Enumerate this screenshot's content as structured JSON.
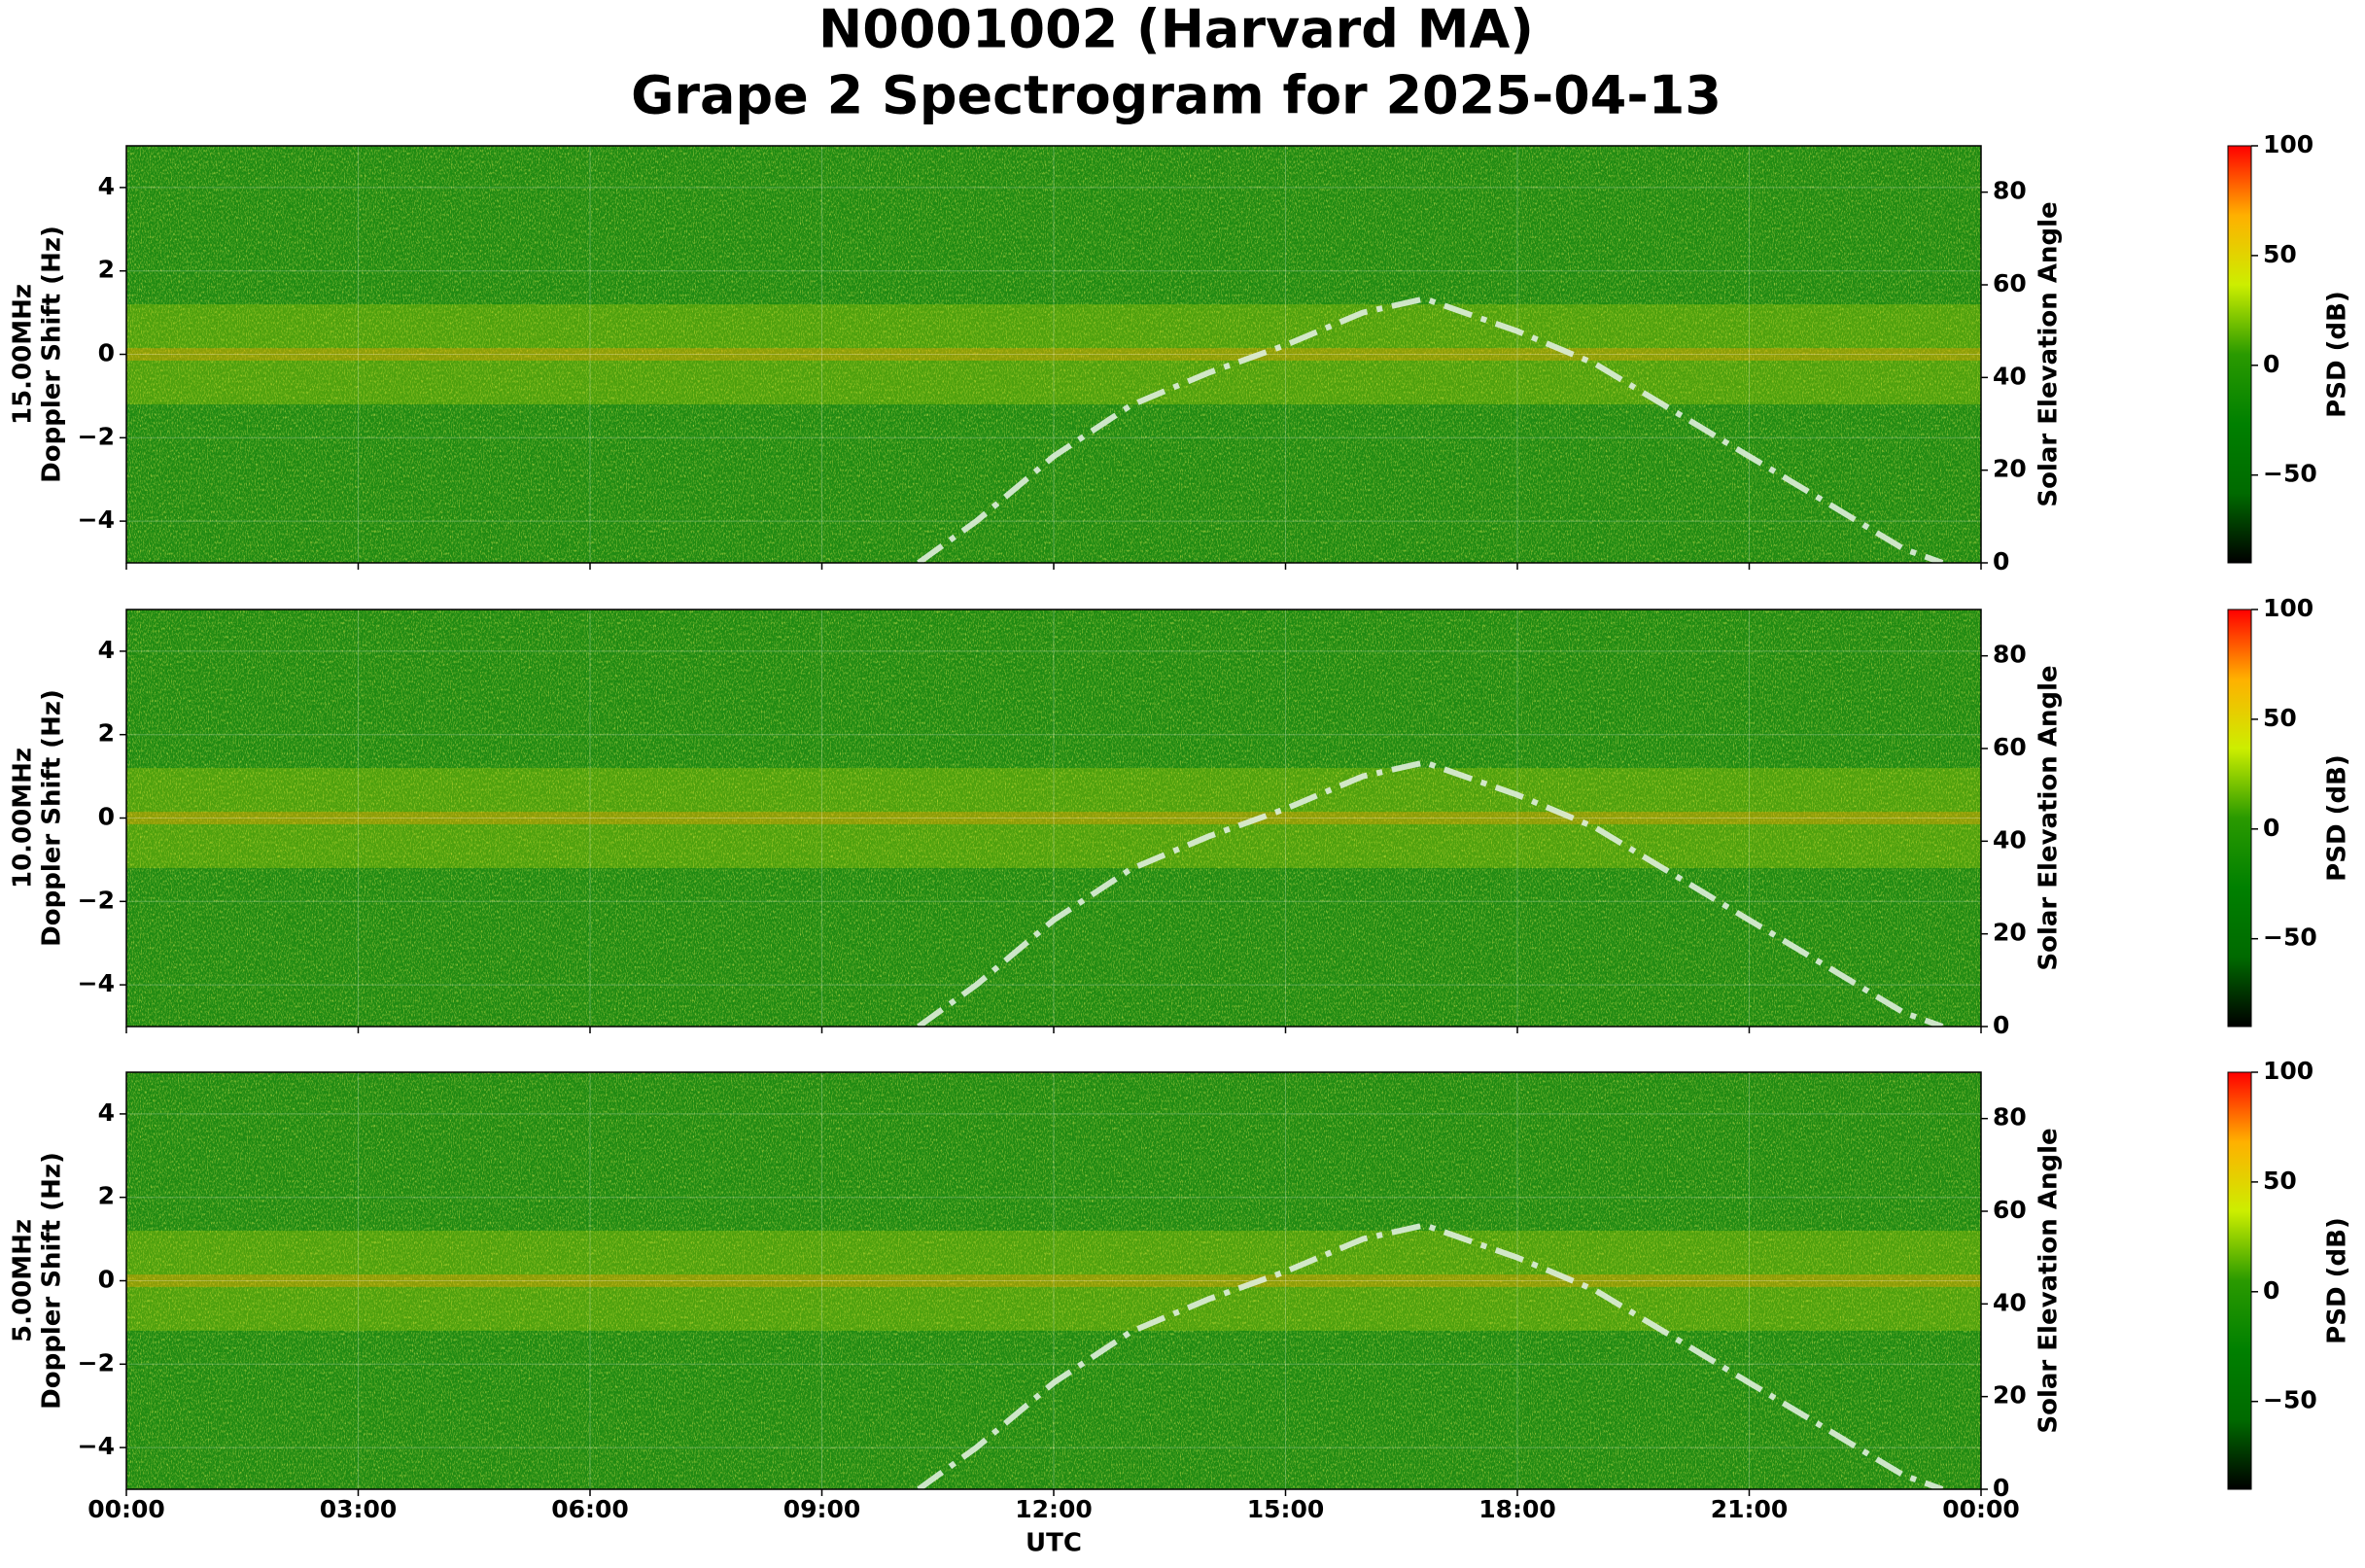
{
  "suptitle": [
    "N0001002 (Harvard MA)",
    "Grape 2 Spectrogram for 2025-04-13"
  ],
  "chart_data": [
    {
      "type": "spectrogram",
      "ylabel": [
        "15.00MHz",
        "Doppler Shift (Hz)"
      ],
      "y2label": "Solar Elevation Angle",
      "xlim": [
        0,
        24
      ],
      "ylim": [
        -5,
        5
      ],
      "yticks": [
        {
          "value": -4,
          "label": "−4"
        },
        {
          "value": -2,
          "label": "−2"
        },
        0,
        2,
        4
      ],
      "y2lim": [
        0,
        90
      ],
      "y2ticks": [
        0,
        20,
        40,
        60,
        80
      ],
      "grid": true,
      "x": [
        10.25,
        11,
        12,
        13,
        14,
        15,
        16,
        16.8,
        18,
        19,
        20,
        21,
        22,
        23,
        23.5
      ],
      "series": [
        {
          "color": "#dfeedd",
          "axis": "y2",
          "linestyle": "dashdot",
          "values": [
            0,
            9,
            23,
            34,
            41,
            47,
            54,
            57,
            50,
            43,
            33,
            23,
            13,
            3,
            0
          ]
        }
      ],
      "colorbar": {
        "label": "PSD (dB)",
        "lim": [
          -90,
          100
        ],
        "ticks": [
          {
            "value": -50,
            "label": "−50"
          },
          0,
          50,
          100
        ],
        "colors": [
          "#000000",
          "#006a00",
          "#008000",
          "#2a9a00",
          "#ccee00",
          "#ffb000",
          "#ff0000"
        ]
      }
    },
    {
      "type": "spectrogram",
      "ylabel": [
        "10.00MHz",
        "Doppler Shift (Hz)"
      ],
      "y2label": "Solar Elevation Angle",
      "xlim": [
        0,
        24
      ],
      "ylim": [
        -5,
        5
      ],
      "yticks": [
        {
          "value": -4,
          "label": "−4"
        },
        {
          "value": -2,
          "label": "−2"
        },
        0,
        2,
        4
      ],
      "y2lim": [
        0,
        90
      ],
      "y2ticks": [
        0,
        20,
        40,
        60,
        80
      ],
      "grid": true,
      "x": [
        10.25,
        11,
        12,
        13,
        14,
        15,
        16,
        16.8,
        18,
        19,
        20,
        21,
        22,
        23,
        23.5
      ],
      "series": [
        {
          "color": "#dfeedd",
          "axis": "y2",
          "linestyle": "dashdot",
          "values": [
            0,
            9,
            23,
            34,
            41,
            47,
            54,
            57,
            50,
            43,
            33,
            23,
            13,
            3,
            0
          ]
        }
      ],
      "colorbar": {
        "label": "PSD (dB)",
        "lim": [
          -90,
          100
        ],
        "ticks": [
          {
            "value": -50,
            "label": "−50"
          },
          0,
          50,
          100
        ],
        "colors": [
          "#000000",
          "#006a00",
          "#008000",
          "#2a9a00",
          "#ccee00",
          "#ffb000",
          "#ff0000"
        ]
      }
    },
    {
      "type": "spectrogram",
      "ylabel": [
        "5.00MHz",
        "Doppler Shift (Hz)"
      ],
      "y2label": "Solar Elevation Angle",
      "xlabel": "UTC",
      "xlim": [
        0,
        24
      ],
      "xticks": [
        {
          "value": 0,
          "label": "00:00"
        },
        {
          "value": 3,
          "label": "03:00"
        },
        {
          "value": 6,
          "label": "06:00"
        },
        {
          "value": 9,
          "label": "09:00"
        },
        {
          "value": 12,
          "label": "12:00"
        },
        {
          "value": 15,
          "label": "15:00"
        },
        {
          "value": 18,
          "label": "18:00"
        },
        {
          "value": 21,
          "label": "21:00"
        },
        {
          "value": 24,
          "label": "00:00"
        }
      ],
      "ylim": [
        -5,
        5
      ],
      "yticks": [
        {
          "value": -4,
          "label": "−4"
        },
        {
          "value": -2,
          "label": "−2"
        },
        0,
        2,
        4
      ],
      "y2lim": [
        0,
        90
      ],
      "y2ticks": [
        0,
        20,
        40,
        60,
        80
      ],
      "grid": true,
      "x": [
        10.25,
        11,
        12,
        13,
        14,
        15,
        16,
        16.8,
        18,
        19,
        20,
        21,
        22,
        23,
        23.5
      ],
      "series": [
        {
          "color": "#dfeedd",
          "axis": "y2",
          "linestyle": "dashdot",
          "values": [
            0,
            9,
            23,
            34,
            41,
            47,
            54,
            57,
            50,
            43,
            33,
            23,
            13,
            3,
            0
          ]
        }
      ],
      "colorbar": {
        "label": "PSD (dB)",
        "lim": [
          -90,
          100
        ],
        "ticks": [
          {
            "value": -50,
            "label": "−50"
          },
          0,
          50,
          100
        ],
        "colors": [
          "#000000",
          "#006a00",
          "#008000",
          "#2a9a00",
          "#ccee00",
          "#ffb000",
          "#ff0000"
        ]
      }
    }
  ]
}
